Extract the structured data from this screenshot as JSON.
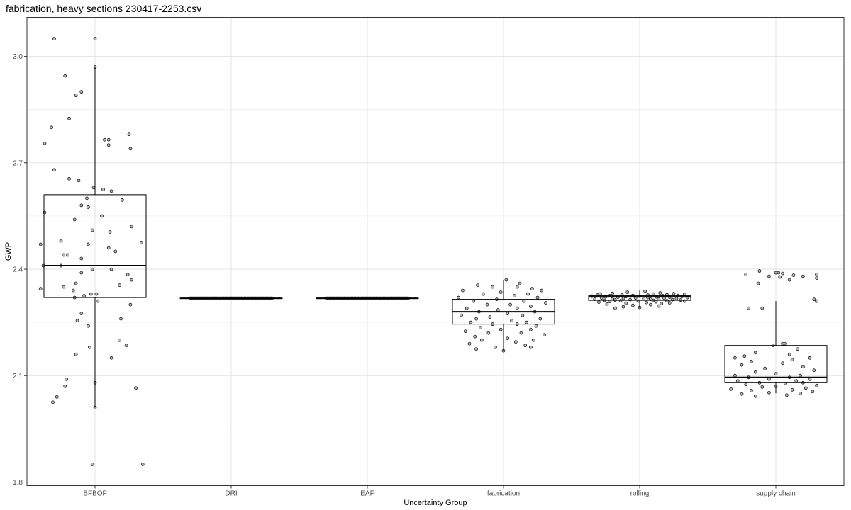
{
  "chart_data": {
    "type": "boxplot",
    "title": "fabrication, heavy sections 230417-2253.csv",
    "xlabel": "Uncertainty Group",
    "ylabel": "GWP",
    "ylim": [
      1.79,
      3.11
    ],
    "y_ticks": [
      1.8,
      2.1,
      2.4,
      2.7,
      3.0
    ],
    "y_tick_labels": [
      "1.8",
      "2.1",
      "2.4",
      "2.7",
      "3.0"
    ],
    "grid": true,
    "categories": [
      "BFBOF",
      "DRI",
      "EAF",
      "fabrication",
      "rolling",
      "supply chain"
    ],
    "boxes": [
      {
        "category": "BFBOF",
        "whisker_low": 2.01,
        "q1": 2.32,
        "median": 2.41,
        "q3": 2.61,
        "whisker_high": 2.97
      },
      {
        "category": "DRI",
        "whisker_low": 2.318,
        "q1": 2.318,
        "median": 2.318,
        "q3": 2.318,
        "whisker_high": 2.318
      },
      {
        "category": "EAF",
        "whisker_low": 2.318,
        "q1": 2.318,
        "median": 2.318,
        "q3": 2.318,
        "whisker_high": 2.318
      },
      {
        "category": "fabrication",
        "whisker_low": 2.17,
        "q1": 2.245,
        "median": 2.28,
        "q3": 2.315,
        "whisker_high": 2.37
      },
      {
        "category": "rolling",
        "whisker_low": 2.29,
        "q1": 2.312,
        "median": 2.322,
        "q3": 2.325,
        "whisker_high": 2.34
      },
      {
        "category": "supply chain",
        "whisker_low": 2.05,
        "q1": 2.08,
        "median": 2.095,
        "q3": 2.185,
        "whisker_high": 2.31
      }
    ],
    "points": [
      {
        "category": "BFBOF",
        "y": [
          3.05,
          3.05,
          2.97,
          2.945,
          2.9,
          2.89,
          2.825,
          2.8,
          2.78,
          2.765,
          2.765,
          2.755,
          2.75,
          2.74,
          2.68,
          2.655,
          2.65,
          2.63,
          2.625,
          2.62,
          2.6,
          2.595,
          2.58,
          2.575,
          2.56,
          2.55,
          2.54,
          2.52,
          2.51,
          2.505,
          2.48,
          2.475,
          2.47,
          2.47,
          2.46,
          2.45,
          2.44,
          2.44,
          2.43,
          2.41,
          2.41,
          2.4,
          2.4,
          2.39,
          2.385,
          2.37,
          2.36,
          2.355,
          2.35,
          2.345,
          2.34,
          2.33,
          2.33,
          2.325,
          2.32,
          2.31,
          2.3,
          2.275,
          2.26,
          2.255,
          2.24,
          2.2,
          2.185,
          2.18,
          2.16,
          2.15,
          2.09,
          2.08,
          2.07,
          2.065,
          2.04,
          2.025,
          2.01,
          1.85,
          1.85
        ],
        "x_jitter": [
          -0.3,
          0.0,
          0.0,
          -0.22,
          -0.1,
          -0.14,
          -0.19,
          -0.32,
          0.25,
          0.07,
          0.1,
          -0.37,
          0.1,
          0.26,
          -0.3,
          -0.19,
          -0.12,
          -0.01,
          0.06,
          0.12,
          -0.06,
          0.2,
          -0.1,
          -0.05,
          -0.37,
          0.05,
          -0.15,
          0.27,
          -0.02,
          0.11,
          -0.25,
          0.34,
          -0.05,
          -0.4,
          0.1,
          0.15,
          -0.2,
          -0.23,
          -0.1,
          -0.38,
          -0.25,
          -0.02,
          0.12,
          -0.1,
          0.24,
          0.27,
          -0.14,
          0.18,
          -0.23,
          -0.4,
          -0.16,
          -0.03,
          0.01,
          -0.08,
          -0.15,
          0.02,
          0.26,
          -0.1,
          0.19,
          -0.13,
          -0.05,
          0.18,
          0.23,
          -0.04,
          -0.14,
          0.12,
          -0.21,
          0.0,
          -0.22,
          0.3,
          -0.28,
          -0.31,
          0.0,
          -0.02,
          0.35
        ]
      },
      {
        "category": "DRI",
        "y": [
          2.318
        ],
        "count": 60,
        "x_spread": 0.3
      },
      {
        "category": "EAF",
        "y": [
          2.318
        ],
        "count": 60,
        "x_spread": 0.3
      },
      {
        "category": "fabrication",
        "y": [
          2.37,
          2.36,
          2.355,
          2.35,
          2.35,
          2.345,
          2.34,
          2.34,
          2.335,
          2.33,
          2.33,
          2.325,
          2.32,
          2.32,
          2.315,
          2.31,
          2.31,
          2.305,
          2.3,
          2.3,
          2.295,
          2.29,
          2.29,
          2.285,
          2.28,
          2.28,
          2.275,
          2.27,
          2.27,
          2.265,
          2.26,
          2.26,
          2.255,
          2.25,
          2.25,
          2.245,
          2.245,
          2.24,
          2.235,
          2.23,
          2.23,
          2.225,
          2.22,
          2.22,
          2.215,
          2.21,
          2.205,
          2.2,
          2.2,
          2.195,
          2.19,
          2.185,
          2.18,
          2.18,
          2.175,
          2.17
        ],
        "x_jitter": [
          0.02,
          0.12,
          -0.19,
          0.1,
          -0.08,
          0.21,
          -0.3,
          0.28,
          -0.02,
          -0.15,
          0.18,
          0.08,
          -0.33,
          0.25,
          -0.05,
          0.15,
          -0.22,
          0.31,
          -0.12,
          0.05,
          0.2,
          -0.27,
          0.1,
          -0.04,
          -0.18,
          0.23,
          0.03,
          -0.31,
          0.14,
          -0.1,
          0.27,
          -0.2,
          0.06,
          -0.24,
          0.17,
          -0.08,
          0.1,
          0.24,
          -0.17,
          -0.02,
          0.2,
          -0.28,
          0.13,
          -0.11,
          0.3,
          -0.21,
          0.03,
          -0.16,
          0.22,
          0.09,
          -0.25,
          0.16,
          -0.06,
          0.2,
          -0.2,
          0.0
        ]
      },
      {
        "category": "rolling",
        "y": [
          2.338,
          2.335,
          2.333,
          2.332,
          2.331,
          2.33,
          2.33,
          2.329,
          2.328,
          2.328,
          2.327,
          2.327,
          2.326,
          2.326,
          2.325,
          2.325,
          2.324,
          2.324,
          2.323,
          2.323,
          2.322,
          2.322,
          2.321,
          2.321,
          2.32,
          2.32,
          2.319,
          2.319,
          2.318,
          2.318,
          2.317,
          2.317,
          2.316,
          2.316,
          2.315,
          2.315,
          2.314,
          2.314,
          2.313,
          2.313,
          2.312,
          2.312,
          2.311,
          2.311,
          2.31,
          2.31,
          2.309,
          2.308,
          2.307,
          2.306,
          2.305,
          2.304,
          2.303,
          2.302,
          2.3,
          2.298,
          2.296,
          2.294,
          2.292,
          2.29
        ],
        "x_jitter": [
          0.04,
          -0.09,
          0.15,
          -0.2,
          0.25,
          -0.29,
          0.1,
          0.33,
          -0.13,
          0.2,
          -0.31,
          0.06,
          0.28,
          -0.05,
          -0.22,
          0.17,
          0.0,
          -0.35,
          0.31,
          -0.1,
          0.12,
          -0.25,
          0.22,
          -0.16,
          0.06,
          0.35,
          -0.03,
          -0.28,
          0.18,
          -0.12,
          0.27,
          0.03,
          -0.2,
          0.14,
          -0.33,
          0.08,
          0.24,
          -0.07,
          -0.18,
          0.3,
          0.1,
          -0.26,
          0.2,
          -0.14,
          -0.01,
          0.33,
          -0.22,
          0.12,
          -0.3,
          0.05,
          0.22,
          -0.1,
          0.16,
          -0.24,
          0.08,
          -0.05,
          0.14,
          -0.12,
          0.0,
          -0.18
        ]
      },
      {
        "category": "supply chain",
        "y": [
          2.395,
          2.39,
          2.39,
          2.388,
          2.385,
          2.385,
          2.383,
          2.38,
          2.38,
          2.378,
          2.375,
          2.37,
          2.36,
          2.315,
          2.31,
          2.29,
          2.29,
          2.19,
          2.19,
          2.185,
          2.175,
          2.165,
          2.16,
          2.155,
          2.15,
          2.15,
          2.145,
          2.14,
          2.135,
          2.13,
          2.125,
          2.12,
          2.115,
          2.11,
          2.105,
          2.1,
          2.1,
          2.095,
          2.095,
          2.09,
          2.09,
          2.085,
          2.085,
          2.08,
          2.08,
          2.078,
          2.075,
          2.072,
          2.07,
          2.068,
          2.065,
          2.062,
          2.06,
          2.058,
          2.055,
          2.052,
          2.05,
          2.048,
          2.045,
          2.042
        ],
        "x_jitter": [
          -0.12,
          0.0,
          0.02,
          0.05,
          0.3,
          -0.22,
          0.13,
          -0.05,
          0.2,
          0.03,
          0.3,
          0.1,
          -0.13,
          0.28,
          0.3,
          -0.2,
          -0.1,
          0.05,
          0.07,
          -0.02,
          0.16,
          -0.15,
          0.1,
          -0.23,
          0.25,
          -0.3,
          0.12,
          -0.18,
          0.05,
          -0.25,
          0.2,
          -0.08,
          0.28,
          -0.15,
          0.0,
          0.18,
          -0.3,
          0.1,
          -0.2,
          0.25,
          -0.05,
          0.15,
          -0.28,
          0.2,
          -0.12,
          0.07,
          -0.22,
          0.3,
          0.0,
          -0.1,
          0.22,
          -0.33,
          0.12,
          -0.18,
          0.27,
          -0.05,
          0.18,
          -0.25,
          0.08,
          -0.15
        ]
      }
    ]
  }
}
